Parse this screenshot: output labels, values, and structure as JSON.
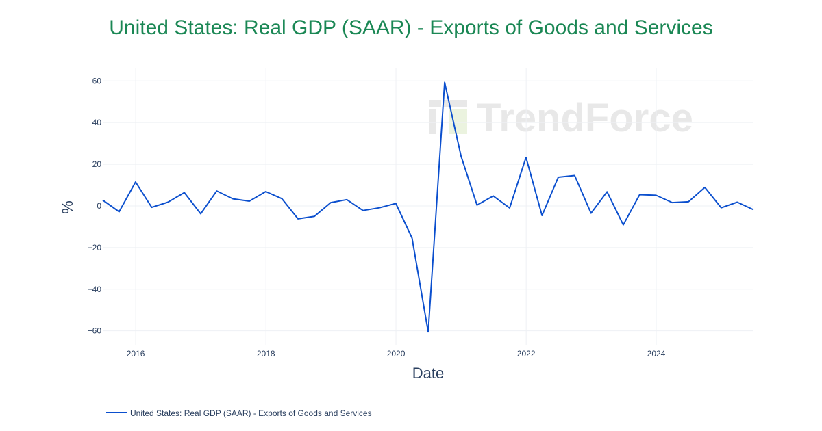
{
  "chart_data": {
    "type": "line",
    "title": "United States: Real GDP (SAAR) - Exports of Goods and Services",
    "xlabel": "Date",
    "ylabel": "%",
    "xlim": [
      "2015-06-30",
      "2025-06-30"
    ],
    "ylim": [
      -67,
      66
    ],
    "x_ticks": [
      "2016",
      "2018",
      "2020",
      "2022",
      "2024"
    ],
    "y_ticks": [
      60,
      40,
      20,
      0,
      -20,
      -40,
      -60
    ],
    "y_tick_labels": [
      "60",
      "40",
      "20",
      "0",
      "−20",
      "−40",
      "−60"
    ],
    "grid": true,
    "legend_position": "bottom-left",
    "watermark": "TrendForce",
    "colors": {
      "series": "#0b4fce",
      "title": "#1a8754"
    },
    "series": [
      {
        "name": "United States: Real GDP (SAAR) - Exports of Goods and Services",
        "x": [
          "2015-06-30",
          "2015-09-30",
          "2015-12-31",
          "2016-03-31",
          "2016-06-30",
          "2016-09-30",
          "2016-12-31",
          "2017-03-31",
          "2017-06-30",
          "2017-09-30",
          "2017-12-31",
          "2018-03-31",
          "2018-06-30",
          "2018-09-30",
          "2018-12-31",
          "2019-03-31",
          "2019-06-30",
          "2019-09-30",
          "2019-12-31",
          "2020-03-31",
          "2020-06-30",
          "2020-09-30",
          "2020-12-31",
          "2021-03-31",
          "2021-06-30",
          "2021-09-30",
          "2021-12-31",
          "2022-03-31",
          "2022-06-30",
          "2022-09-30",
          "2022-12-31",
          "2023-03-31",
          "2023-06-30",
          "2023-09-30",
          "2023-12-31",
          "2024-03-31",
          "2024-06-30",
          "2024-09-30",
          "2024-12-31",
          "2025-03-31",
          "2025-06-30"
        ],
        "y": [
          2.8,
          -2.8,
          11.5,
          -0.7,
          1.8,
          6.4,
          -3.8,
          7.2,
          3.4,
          2.3,
          6.9,
          3.5,
          -6.2,
          -5.0,
          1.6,
          3.0,
          -2.2,
          -0.9,
          1.2,
          -15.4,
          -60.5,
          59.3,
          24.0,
          0.4,
          4.8,
          -1.0,
          23.3,
          -4.6,
          13.8,
          14.6,
          -3.5,
          6.8,
          -9.1,
          5.4,
          5.1,
          1.6,
          2.0,
          8.9,
          -0.9,
          1.8,
          -1.8
        ]
      }
    ]
  }
}
